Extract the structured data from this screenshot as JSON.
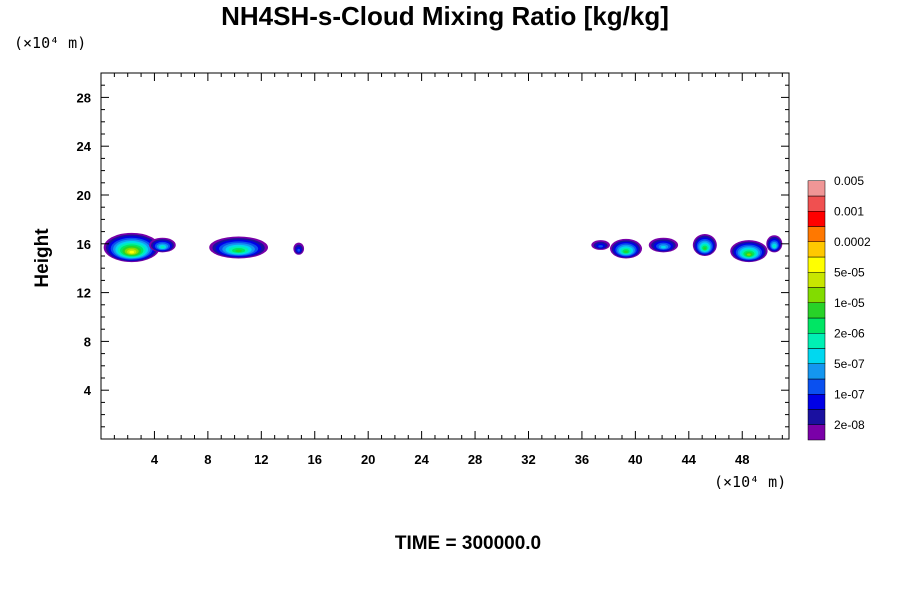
{
  "chart_data": {
    "type": "contour",
    "title": "NH4SH-s-Cloud Mixing Ratio [kg/kg]",
    "ylabel": "Height",
    "x_unit": "(×10⁴ m)",
    "y_unit": "(×10⁴ m)",
    "xlim": [
      0,
      51.5
    ],
    "ylim": [
      0,
      30
    ],
    "x_ticks": [
      4,
      8,
      12,
      16,
      20,
      24,
      28,
      32,
      36,
      40,
      44,
      48
    ],
    "y_ticks": [
      4,
      8,
      12,
      16,
      20,
      24,
      28
    ],
    "x_tick_labels": [
      "4",
      "8",
      "12",
      "16",
      "20",
      "24",
      "28",
      "32",
      "36",
      "40",
      "44",
      "48"
    ],
    "y_tick_labels": [
      "4",
      "8",
      "12",
      "16",
      "20",
      "24",
      "28"
    ],
    "time_label": "TIME = 300000.0",
    "colorbar": {
      "colors": [
        "#7a00a8",
        "#1a10a0",
        "#0000e6",
        "#0a50f0",
        "#1496f0",
        "#00d8f0",
        "#00f0b4",
        "#00e664",
        "#28d228",
        "#82dc00",
        "#c8e600",
        "#ffff00",
        "#ffc800",
        "#ff7800",
        "#ff0000",
        "#f05050",
        "#f09696"
      ],
      "labels": [
        "2e-08",
        "1e-07",
        "5e-07",
        "2e-06",
        "1e-05",
        "5e-05",
        "0.0002",
        "0.001",
        "0.005"
      ]
    },
    "cloud_regions": [
      {
        "x_center": 2.3,
        "y_center": 15.7,
        "x_half_width": 2.1,
        "y_half_height": 1.2,
        "peak_level": 12
      },
      {
        "x_center": 4.6,
        "y_center": 15.9,
        "x_half_width": 1.0,
        "y_half_height": 0.6,
        "peak_level": 7
      },
      {
        "x_center": 10.3,
        "y_center": 15.7,
        "x_half_width": 2.2,
        "y_half_height": 0.9,
        "peak_level": 9
      },
      {
        "x_center": 14.8,
        "y_center": 15.6,
        "x_half_width": 0.4,
        "y_half_height": 0.5,
        "peak_level": 4
      },
      {
        "x_center": 37.4,
        "y_center": 15.9,
        "x_half_width": 0.7,
        "y_half_height": 0.4,
        "peak_level": 4
      },
      {
        "x_center": 39.3,
        "y_center": 15.6,
        "x_half_width": 1.2,
        "y_half_height": 0.8,
        "peak_level": 9
      },
      {
        "x_center": 42.1,
        "y_center": 15.9,
        "x_half_width": 1.1,
        "y_half_height": 0.6,
        "peak_level": 6
      },
      {
        "x_center": 45.2,
        "y_center": 15.9,
        "x_half_width": 0.9,
        "y_half_height": 0.9,
        "peak_level": 9
      },
      {
        "x_center": 48.5,
        "y_center": 15.4,
        "x_half_width": 1.4,
        "y_half_height": 0.9,
        "peak_level": 10
      },
      {
        "x_center": 50.4,
        "y_center": 16.0,
        "x_half_width": 0.6,
        "y_half_height": 0.7,
        "peak_level": 7
      }
    ]
  }
}
